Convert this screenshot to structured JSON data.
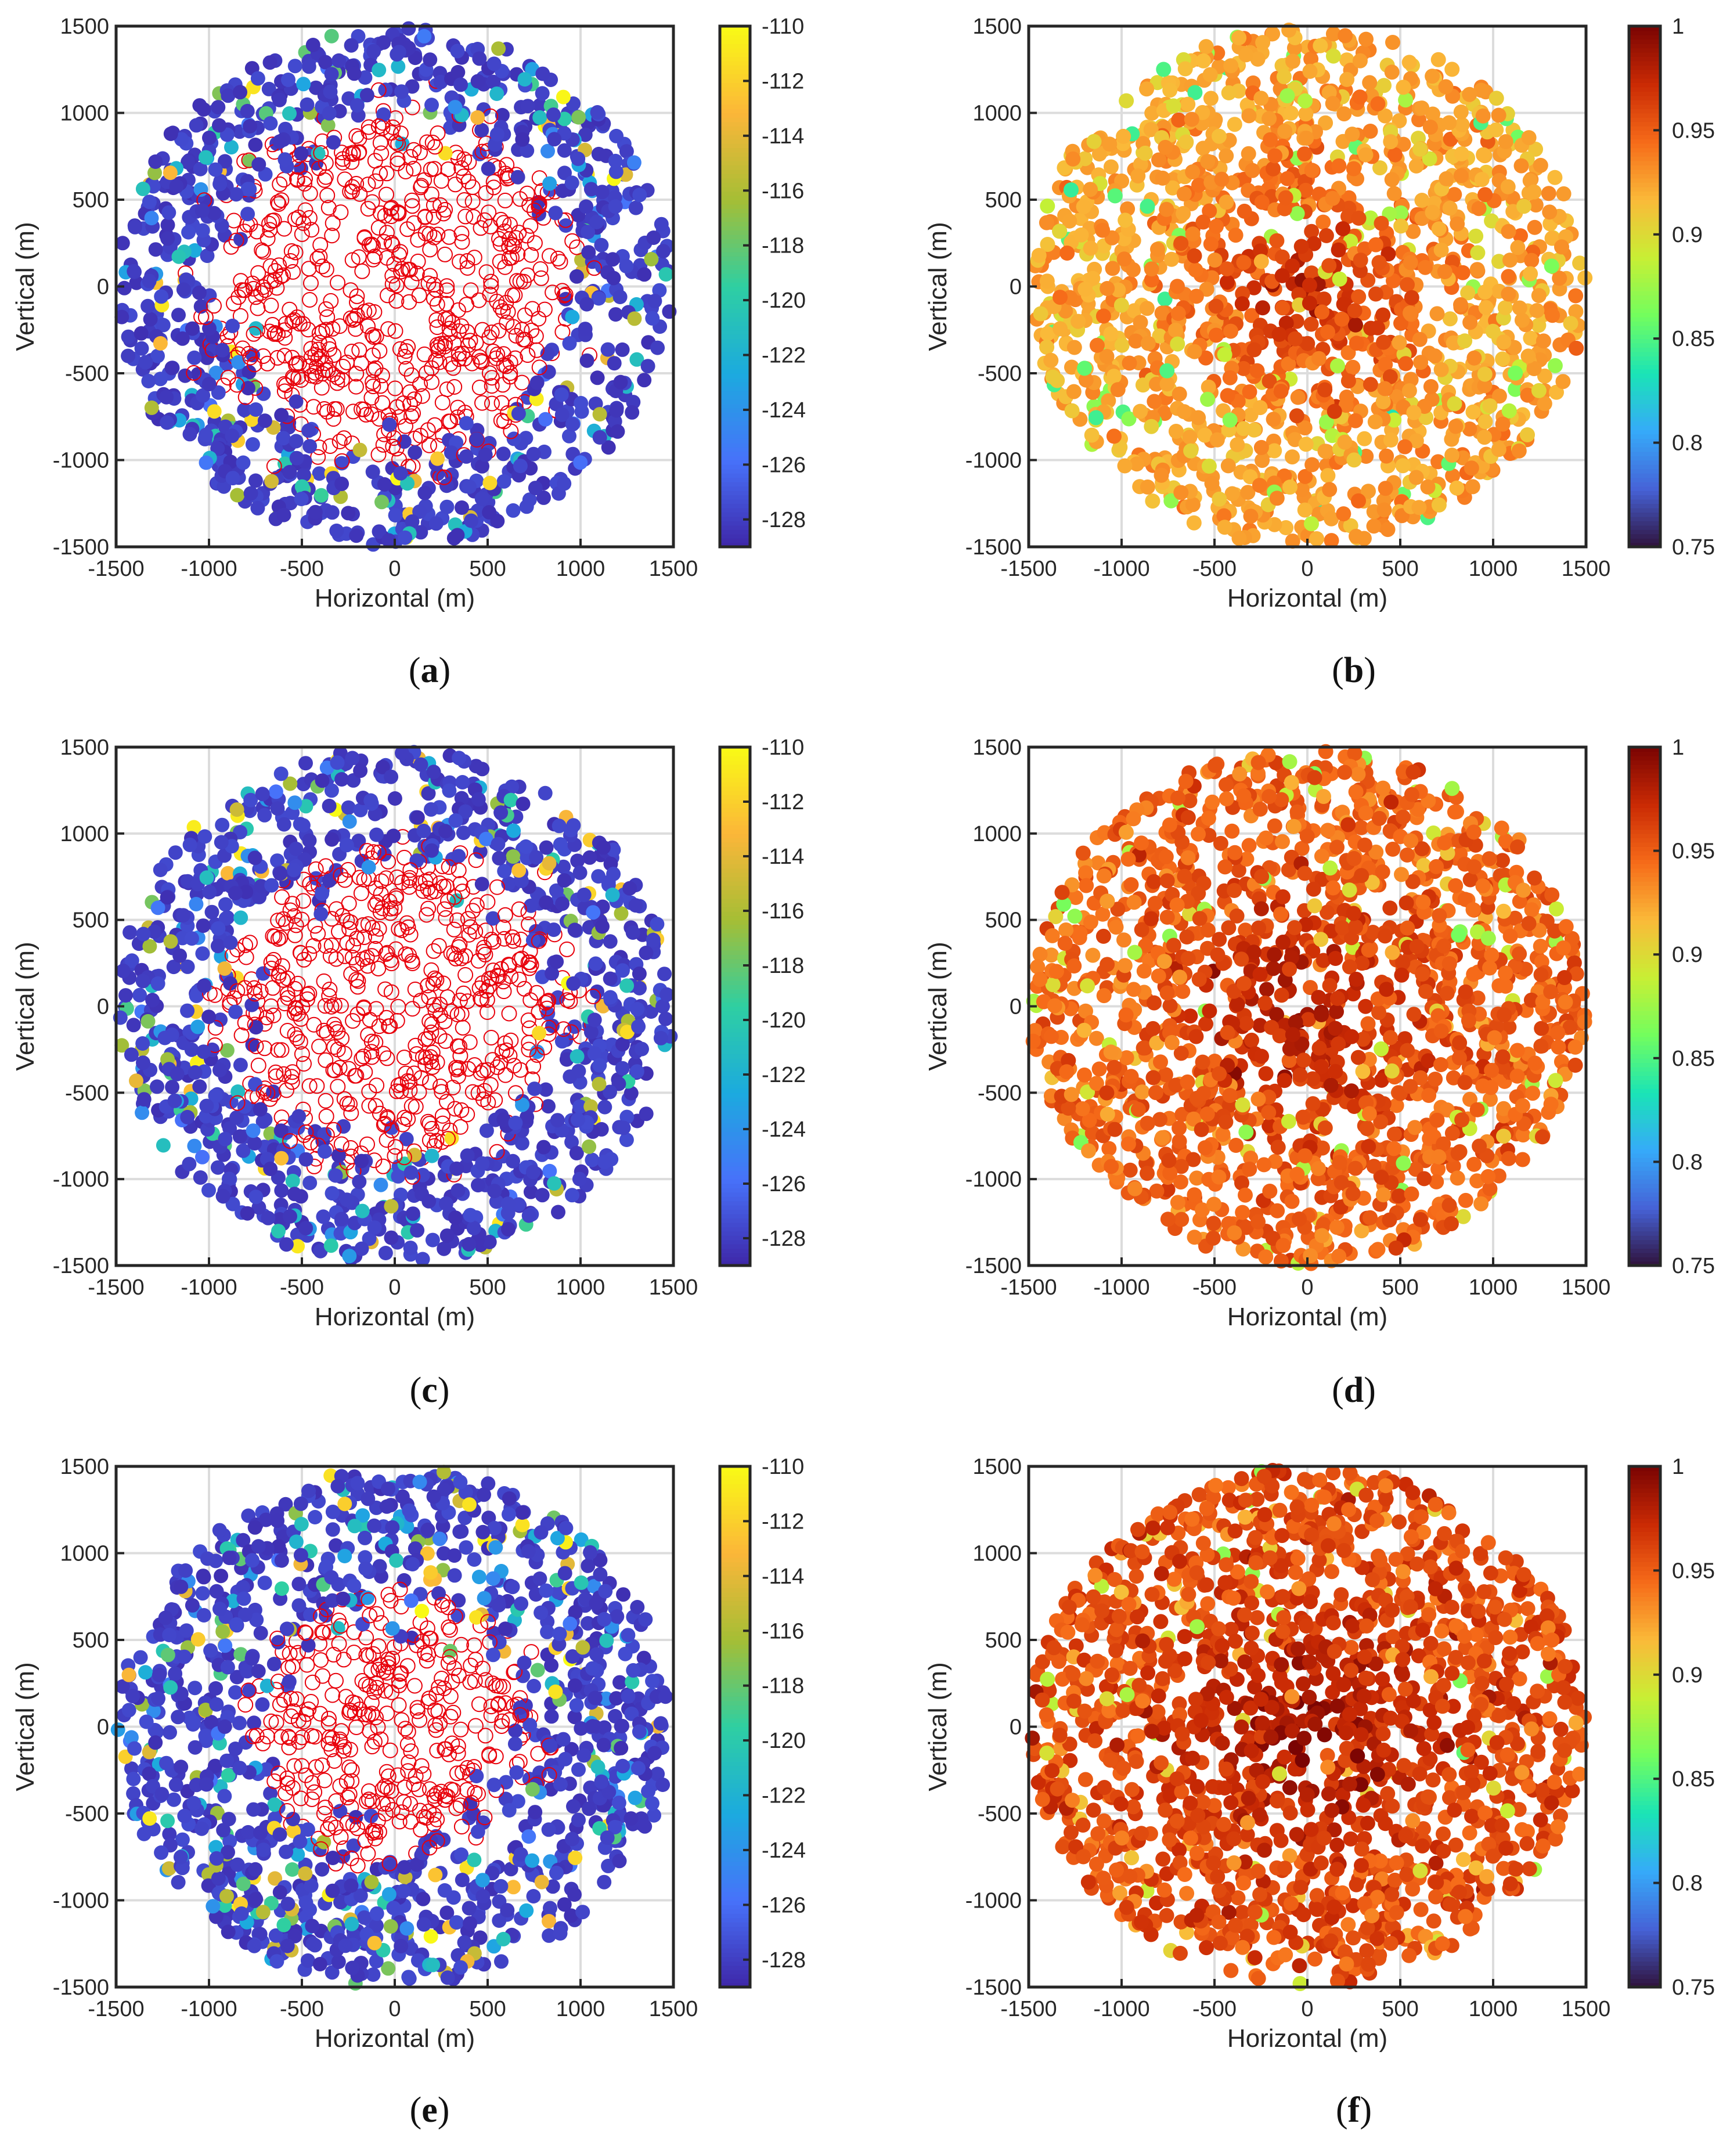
{
  "chart_data": [
    {
      "type": "scatter",
      "panel": "a",
      "caption_letter": "a",
      "variant": "rsrp",
      "ring": 0.36,
      "xlabel": "Horizontal (m)",
      "ylabel": "Vertical (m)",
      "xlim": [
        -1500,
        1500
      ],
      "ylim": [
        -1500,
        1500
      ],
      "xticks": [
        "-1500",
        "-1000",
        "-500",
        "0",
        "500",
        "1000",
        "1500"
      ],
      "yticks": [
        "-1500",
        "-1000",
        "-500",
        "0",
        "500",
        "1000",
        "1500"
      ],
      "grid": true,
      "colorbar": {
        "min": -129,
        "max": -110,
        "ticks": [
          "-110",
          "-112",
          "-114",
          "-116",
          "-118",
          "-120",
          "-122",
          "-124",
          "-126",
          "-128"
        ]
      },
      "series": [
        {
          "name": "covered users (open red circles)",
          "region": "inner radius 0-1150 m"
        },
        {
          "name": "users colored by received power",
          "region": "outer ring 1000-1500 m",
          "typical_value": -128
        }
      ]
    },
    {
      "type": "scatter",
      "panel": "b",
      "caption_letter": "b",
      "variant": "sinr",
      "center": 0.975,
      "edge": 0.925,
      "xlabel": "Horizontal (m)",
      "ylabel": "Vertical (m)",
      "xlim": [
        -1500,
        1500
      ],
      "ylim": [
        -1500,
        1500
      ],
      "xticks": [
        "-1500",
        "-1000",
        "-500",
        "0",
        "500",
        "1000",
        "1500"
      ],
      "yticks": [
        "-1500",
        "-1000",
        "-500",
        "0",
        "500",
        "1000",
        "1500"
      ],
      "grid": true,
      "colorbar": {
        "min": 0.75,
        "max": 1,
        "ticks": [
          "1",
          "0.95",
          "0.9",
          "0.85",
          "0.8",
          "0.75"
        ]
      },
      "series": [
        {
          "name": "users colored by normalized value",
          "center_value": 0.975,
          "edge_value": 0.925
        }
      ]
    },
    {
      "type": "scatter",
      "panel": "c",
      "caption_letter": "c",
      "variant": "rsrp",
      "ring": 0.3,
      "xlabel": "Horizontal (m)",
      "ylabel": "Vertical (m)",
      "xlim": [
        -1500,
        1500
      ],
      "ylim": [
        -1500,
        1500
      ],
      "xticks": [
        "-1500",
        "-1000",
        "-500",
        "0",
        "500",
        "1000",
        "1500"
      ],
      "yticks": [
        "-1500",
        "-1000",
        "-500",
        "0",
        "500",
        "1000",
        "1500"
      ],
      "grid": true,
      "colorbar": {
        "min": -129,
        "max": -110,
        "ticks": [
          "-110",
          "-112",
          "-114",
          "-116",
          "-118",
          "-120",
          "-122",
          "-124",
          "-126",
          "-128"
        ]
      },
      "series": [
        {
          "name": "covered users (open red circles)",
          "region": "inner radius 0-1000 m"
        },
        {
          "name": "users colored by received power",
          "region": "outer ring 900-1500 m",
          "typical_value": -128
        }
      ]
    },
    {
      "type": "scatter",
      "panel": "d",
      "caption_letter": "d",
      "variant": "sinr",
      "center": 0.982,
      "edge": 0.948,
      "xlabel": "Horizontal (m)",
      "ylabel": "Vertical (m)",
      "xlim": [
        -1500,
        1500
      ],
      "ylim": [
        -1500,
        1500
      ],
      "xticks": [
        "-1500",
        "-1000",
        "-500",
        "0",
        "500",
        "1000",
        "1500"
      ],
      "yticks": [
        "-1500",
        "-1000",
        "-500",
        "0",
        "500",
        "1000",
        "1500"
      ],
      "grid": true,
      "colorbar": {
        "min": 0.75,
        "max": 1,
        "ticks": [
          "1",
          "0.95",
          "0.9",
          "0.85",
          "0.8",
          "0.75"
        ]
      },
      "series": [
        {
          "name": "users colored by normalized value",
          "center_value": 0.982,
          "edge_value": 0.948
        }
      ]
    },
    {
      "type": "scatter",
      "panel": "e",
      "caption_letter": "e",
      "variant": "rsrp",
      "ring": 0.2,
      "xlabel": "Horizontal (m)",
      "ylabel": "Vertical (m)",
      "xlim": [
        -1500,
        1500
      ],
      "ylim": [
        -1500,
        1500
      ],
      "xticks": [
        "-1500",
        "-1000",
        "-500",
        "0",
        "500",
        "1000",
        "1500"
      ],
      "yticks": [
        "-1500",
        "-1000",
        "-500",
        "0",
        "500",
        "1000",
        "1500"
      ],
      "grid": true,
      "colorbar": {
        "min": -129,
        "max": -110,
        "ticks": [
          "-110",
          "-112",
          "-114",
          "-116",
          "-118",
          "-120",
          "-122",
          "-124",
          "-126",
          "-128"
        ]
      },
      "series": [
        {
          "name": "covered users (open red circles)",
          "region": "inner radius 0-700 m"
        },
        {
          "name": "users colored by received power",
          "region": "outer ring 600-1500 m",
          "typical_value": -128
        }
      ]
    },
    {
      "type": "scatter",
      "panel": "f",
      "caption_letter": "f",
      "variant": "sinr",
      "center": 0.988,
      "edge": 0.958,
      "xlabel": "Horizontal (m)",
      "ylabel": "Vertical (m)",
      "xlim": [
        -1500,
        1500
      ],
      "ylim": [
        -1500,
        1500
      ],
      "xticks": [
        "-1500",
        "-1000",
        "-500",
        "0",
        "500",
        "1000",
        "1500"
      ],
      "yticks": [
        "-1500",
        "-1000",
        "-500",
        "0",
        "500",
        "1000",
        "1500"
      ],
      "grid": true,
      "colorbar": {
        "min": 0.75,
        "max": 1,
        "ticks": [
          "1",
          "0.95",
          "0.9",
          "0.85",
          "0.8",
          "0.75"
        ]
      },
      "series": [
        {
          "name": "users colored by normalized value",
          "center_value": 0.988,
          "edge_value": 0.958
        }
      ]
    }
  ],
  "colors": {
    "open_marker": "#e8000b",
    "grid": "#dcdcdc",
    "axis": "#262626",
    "rsrp_colormap": [
      "#3e26a8",
      "#4772fa",
      "#1caadf",
      "#2ecfa2",
      "#a5be35",
      "#fbb639",
      "#f9fb15"
    ],
    "sinr_colormap": [
      "#30123b",
      "#4662d7",
      "#36aaf9",
      "#1ae4b6",
      "#72fe5e",
      "#c8ef34",
      "#faba39",
      "#f66b19",
      "#ca2a04",
      "#7a0403"
    ]
  }
}
